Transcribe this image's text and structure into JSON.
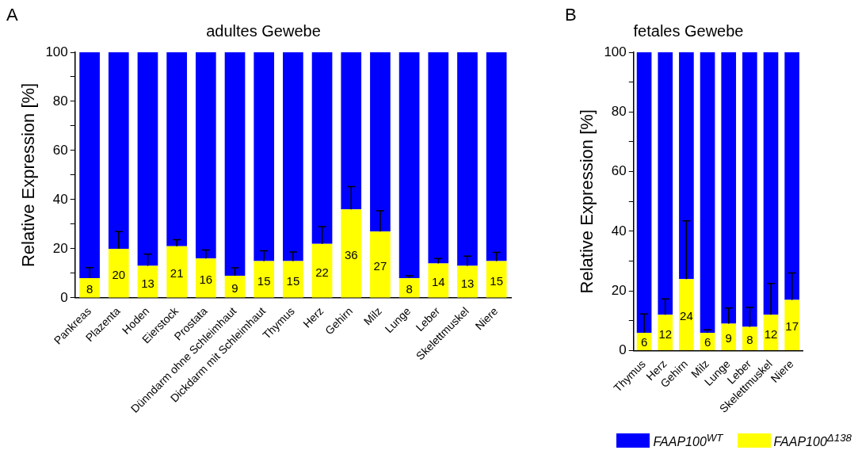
{
  "chart_data": [
    {
      "type": "bar",
      "title": "adultes Gewebe",
      "ylabel": "Relative Expression [%]",
      "annotations": [
        "A"
      ],
      "stacked": true,
      "legend": false,
      "grid": false,
      "categories": [
        "Pankreas",
        "Plazenta",
        "Hoden",
        "Eierstock",
        "Prostata",
        "Dünndarm ohne Schleimhaut",
        "Dickdarm mit Schleimhaut",
        "Thymus",
        "Herz",
        "Gehirn",
        "Milz",
        "Lunge",
        "Leber",
        "Skelettmuskel",
        "Niere"
      ],
      "ylim": [
        0,
        100
      ],
      "yticks": [
        0,
        {
          "value": 10,
          "label": null
        },
        20,
        {
          "value": 30,
          "label": null
        },
        40,
        {
          "value": 50,
          "label": null
        },
        60,
        {
          "value": 70,
          "label": null
        },
        80,
        {
          "value": 90,
          "label": null
        },
        100
      ],
      "series": [
        {
          "color": "#ffff00",
          "values": [
            8,
            20,
            13,
            21,
            16,
            9,
            15,
            15,
            22,
            36,
            27,
            8,
            14,
            13,
            15
          ],
          "value_labels": [
            "8",
            "20",
            "13",
            "21",
            "16",
            "9",
            "15",
            "15",
            "22",
            "36",
            "27",
            "8",
            "14",
            "13",
            "15"
          ],
          "errors": [
            [
              8,
              12.3
            ],
            [
              20,
              27
            ],
            [
              13,
              17.8
            ],
            [
              21,
              23.7
            ],
            [
              16,
              19.5
            ],
            [
              9,
              12.2
            ],
            [
              15,
              19.2
            ],
            [
              15,
              18.7
            ],
            [
              22,
              29
            ],
            [
              36,
              45.3
            ],
            [
              27,
              35.5
            ],
            [
              8,
              9
            ],
            [
              14,
              16
            ],
            [
              13,
              17
            ],
            [
              15,
              18.5
            ]
          ]
        },
        {
          "color": "#0000ff",
          "values": [
            92,
            80,
            87,
            79,
            84,
            91,
            85,
            85,
            78,
            64,
            73,
            92,
            86,
            87,
            85
          ]
        }
      ]
    },
    {
      "type": "bar",
      "title": "fetales Gewebe",
      "ylabel": "Relative Expression [%]",
      "annotations": [
        "B"
      ],
      "stacked": true,
      "legend": "bottom right",
      "grid": false,
      "categories": [
        "Thymus",
        "Herz",
        "Gehirn",
        "Milz",
        "Lunge",
        "Leber",
        "Skelettmuskel",
        "Niere"
      ],
      "ylim": [
        0,
        100
      ],
      "yticks": [
        0,
        {
          "value": 10,
          "label": null
        },
        20,
        {
          "value": 30,
          "label": null
        },
        40,
        {
          "value": 50,
          "label": null
        },
        60,
        {
          "value": 70,
          "label": null
        },
        80,
        {
          "value": 90,
          "label": null
        },
        100
      ],
      "series": [
        {
          "name": "FAAP100$^{Δ138}$",
          "color": "#ffff00",
          "values": [
            6,
            12,
            24,
            6,
            9,
            8,
            12,
            17
          ],
          "value_labels": [
            "6",
            "12",
            "24",
            "6",
            "9",
            "8",
            "12",
            "17"
          ],
          "errors": [
            [
              6,
              12.3
            ],
            [
              12,
              17.3
            ],
            [
              24,
              43.5
            ],
            [
              6,
              7
            ],
            [
              9,
              14.3
            ],
            [
              8,
              14.5
            ],
            [
              12,
              22.5
            ],
            [
              17,
              26
            ]
          ]
        },
        {
          "name": "FAAP100$^{WT}$",
          "color": "#0000ff",
          "values": [
            94,
            88,
            76,
            94,
            91,
            92,
            88,
            83
          ]
        }
      ]
    }
  ]
}
